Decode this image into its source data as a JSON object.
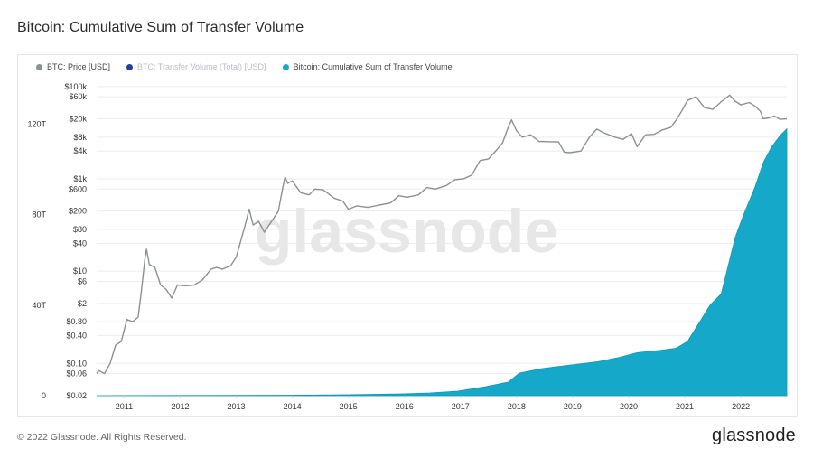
{
  "title": "Bitcoin: Cumulative Sum of Transfer Volume",
  "footer": {
    "copyright": "© 2022 Glassnode. All Rights Reserved.",
    "logo": "glassnode"
  },
  "watermark": "glassnode",
  "legend": [
    {
      "label": "BTC: Price [USD]",
      "color": "#8a9194",
      "muted": false
    },
    {
      "label": "BTC: Transfer Volume (Total) [USD]",
      "color": "#2b3aa0",
      "muted": true
    },
    {
      "label": "Bitcoin: Cumulative Sum of Transfer Volume",
      "color": "#15a8c8",
      "muted": false
    }
  ],
  "chart_data": {
    "type": "line",
    "x_ticks": [
      "2011",
      "2012",
      "2013",
      "2014",
      "2015",
      "2016",
      "2017",
      "2018",
      "2019",
      "2020",
      "2021",
      "2022"
    ],
    "x_range": [
      2010.56,
      2022.87
    ],
    "left_axis": {
      "scale": "linear",
      "ticks": [
        "0",
        "40T",
        "80T",
        "120T"
      ],
      "range_T": [
        0,
        139
      ]
    },
    "right_axis": {
      "scale": "log",
      "ticks": [
        "$0.02",
        "$0.06",
        "$0.10",
        "$0.40",
        "$0.80",
        "$2",
        "$6",
        "$10",
        "$40",
        "$80",
        "$200",
        "$600",
        "$1k",
        "$4k",
        "$8k",
        "$20k",
        "$60k",
        "$100k"
      ],
      "range": [
        0.02,
        130000
      ]
    },
    "grid": true,
    "series": [
      {
        "name": "BTC: Price [USD]",
        "type": "line",
        "color": "#8a9194",
        "axis": "right",
        "points": [
          [
            2010.56,
            0.06
          ],
          [
            2010.6,
            0.07
          ],
          [
            2010.7,
            0.06
          ],
          [
            2010.8,
            0.1
          ],
          [
            2010.9,
            0.25
          ],
          [
            2011.0,
            0.3
          ],
          [
            2011.1,
            0.9
          ],
          [
            2011.2,
            0.8
          ],
          [
            2011.3,
            1.0
          ],
          [
            2011.35,
            3
          ],
          [
            2011.42,
            18
          ],
          [
            2011.45,
            30
          ],
          [
            2011.5,
            14
          ],
          [
            2011.6,
            12
          ],
          [
            2011.7,
            5
          ],
          [
            2011.8,
            4
          ],
          [
            2011.9,
            2.6
          ],
          [
            2012.0,
            5
          ],
          [
            2012.15,
            4.8
          ],
          [
            2012.3,
            5
          ],
          [
            2012.45,
            6.5
          ],
          [
            2012.6,
            11
          ],
          [
            2012.7,
            12
          ],
          [
            2012.8,
            11
          ],
          [
            2012.95,
            13
          ],
          [
            2013.05,
            20
          ],
          [
            2013.2,
            90
          ],
          [
            2013.28,
            220
          ],
          [
            2013.35,
            100
          ],
          [
            2013.45,
            120
          ],
          [
            2013.55,
            70
          ],
          [
            2013.7,
            130
          ],
          [
            2013.8,
            200
          ],
          [
            2013.88,
            650
          ],
          [
            2013.92,
            1100
          ],
          [
            2013.97,
            800
          ],
          [
            2014.05,
            900
          ],
          [
            2014.2,
            500
          ],
          [
            2014.35,
            450
          ],
          [
            2014.45,
            600
          ],
          [
            2014.6,
            580
          ],
          [
            2014.8,
            380
          ],
          [
            2014.95,
            330
          ],
          [
            2015.05,
            220
          ],
          [
            2015.2,
            260
          ],
          [
            2015.4,
            240
          ],
          [
            2015.6,
            270
          ],
          [
            2015.8,
            300
          ],
          [
            2015.95,
            430
          ],
          [
            2016.1,
            400
          ],
          [
            2016.3,
            450
          ],
          [
            2016.45,
            650
          ],
          [
            2016.6,
            600
          ],
          [
            2016.8,
            720
          ],
          [
            2016.95,
            960
          ],
          [
            2017.1,
            1000
          ],
          [
            2017.25,
            1200
          ],
          [
            2017.4,
            2500
          ],
          [
            2017.55,
            2700
          ],
          [
            2017.7,
            4300
          ],
          [
            2017.8,
            6000
          ],
          [
            2017.9,
            13000
          ],
          [
            2017.96,
            19000
          ],
          [
            2018.05,
            11000
          ],
          [
            2018.15,
            8000
          ],
          [
            2018.3,
            9000
          ],
          [
            2018.45,
            6500
          ],
          [
            2018.6,
            6400
          ],
          [
            2018.8,
            6300
          ],
          [
            2018.9,
            3800
          ],
          [
            2019.0,
            3700
          ],
          [
            2019.2,
            4000
          ],
          [
            2019.35,
            8000
          ],
          [
            2019.48,
            12000
          ],
          [
            2019.6,
            10000
          ],
          [
            2019.8,
            8000
          ],
          [
            2019.95,
            7200
          ],
          [
            2020.1,
            9500
          ],
          [
            2020.2,
            5000
          ],
          [
            2020.35,
            9000
          ],
          [
            2020.5,
            9200
          ],
          [
            2020.65,
            11500
          ],
          [
            2020.8,
            13000
          ],
          [
            2020.9,
            19000
          ],
          [
            2021.0,
            30000
          ],
          [
            2021.1,
            50000
          ],
          [
            2021.25,
            60000
          ],
          [
            2021.4,
            35000
          ],
          [
            2021.55,
            32000
          ],
          [
            2021.7,
            47000
          ],
          [
            2021.85,
            65000
          ],
          [
            2021.95,
            48000
          ],
          [
            2022.05,
            40000
          ],
          [
            2022.2,
            45000
          ],
          [
            2022.3,
            38000
          ],
          [
            2022.4,
            29000
          ],
          [
            2022.45,
            20000
          ],
          [
            2022.55,
            21000
          ],
          [
            2022.65,
            23000
          ],
          [
            2022.75,
            19500
          ],
          [
            2022.87,
            20000
          ]
        ]
      },
      {
        "name": "Bitcoin: Cumulative Sum of Transfer Volume",
        "type": "area",
        "color": "#15a8c8",
        "axis": "left",
        "unit": "T",
        "points": [
          [
            2010.56,
            0
          ],
          [
            2014.0,
            0.2
          ],
          [
            2015.0,
            0.4
          ],
          [
            2016.0,
            0.8
          ],
          [
            2016.5,
            1.2
          ],
          [
            2017.0,
            2
          ],
          [
            2017.5,
            4
          ],
          [
            2017.9,
            6
          ],
          [
            2018.1,
            10
          ],
          [
            2018.5,
            12
          ],
          [
            2019.0,
            13.5
          ],
          [
            2019.5,
            15
          ],
          [
            2019.9,
            17
          ],
          [
            2020.2,
            19
          ],
          [
            2020.6,
            20
          ],
          [
            2020.9,
            21
          ],
          [
            2021.1,
            24
          ],
          [
            2021.3,
            32
          ],
          [
            2021.5,
            40
          ],
          [
            2021.7,
            45
          ],
          [
            2021.8,
            55
          ],
          [
            2021.95,
            70
          ],
          [
            2022.1,
            80
          ],
          [
            2022.3,
            92
          ],
          [
            2022.45,
            103
          ],
          [
            2022.6,
            110
          ],
          [
            2022.75,
            115
          ],
          [
            2022.87,
            118
          ]
        ]
      }
    ]
  }
}
